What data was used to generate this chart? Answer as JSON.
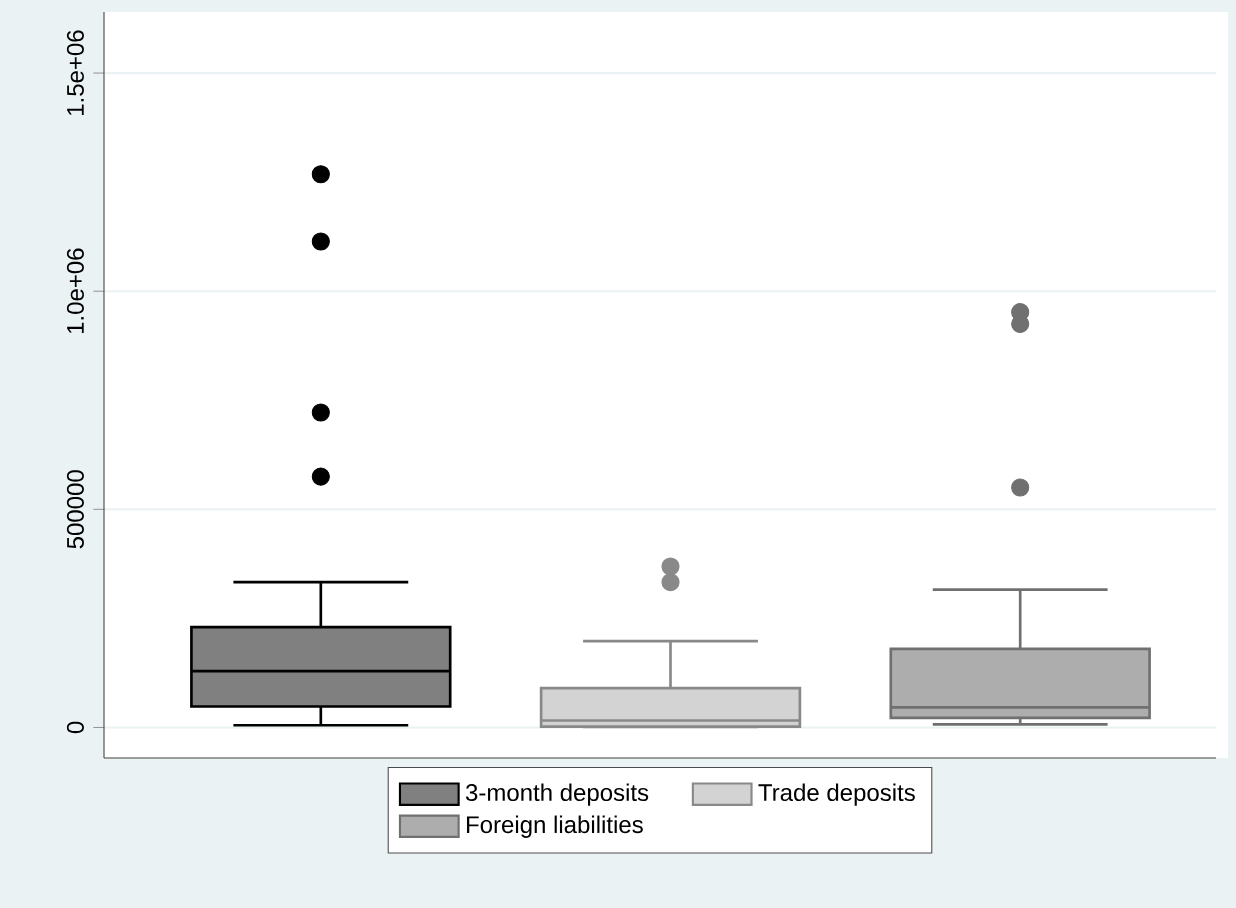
{
  "chart_data": {
    "type": "box",
    "categories": [
      null
    ],
    "series": [
      {
        "name": "3-month deposits",
        "color": "#808080",
        "boxes": [
          {
            "low": 5000,
            "q1": 48000,
            "median": 129000,
            "q3": 230000,
            "high": 333000,
            "outliers": [
              575000,
              722000,
              1114000,
              1268000
            ]
          }
        ]
      },
      {
        "name": "Trade deposits",
        "color": "#d3d3d3",
        "boxes": [
          {
            "low": 1000,
            "q1": 2000,
            "median": 16000,
            "q3": 90000,
            "high": 198000,
            "outliers": [
              333000,
              369000
            ]
          }
        ]
      },
      {
        "name": "Foreign liabilities",
        "color": "#adadad",
        "boxes": [
          {
            "low": 7000,
            "q1": 22000,
            "median": 46000,
            "q3": 180000,
            "high": 316000,
            "outliers": [
              550000,
              925000,
              952000
            ]
          }
        ]
      }
    ],
    "ylim": [
      -70000,
      1640000
    ],
    "yticks": [
      0,
      500000,
      {
        "value": 1000000,
        "label": "1.0e+06"
      },
      {
        "value": 1500000,
        "label": "1.5e+06"
      }
    ],
    "grid": "y",
    "legend": "bottom",
    "tick_labels": "y"
  }
}
